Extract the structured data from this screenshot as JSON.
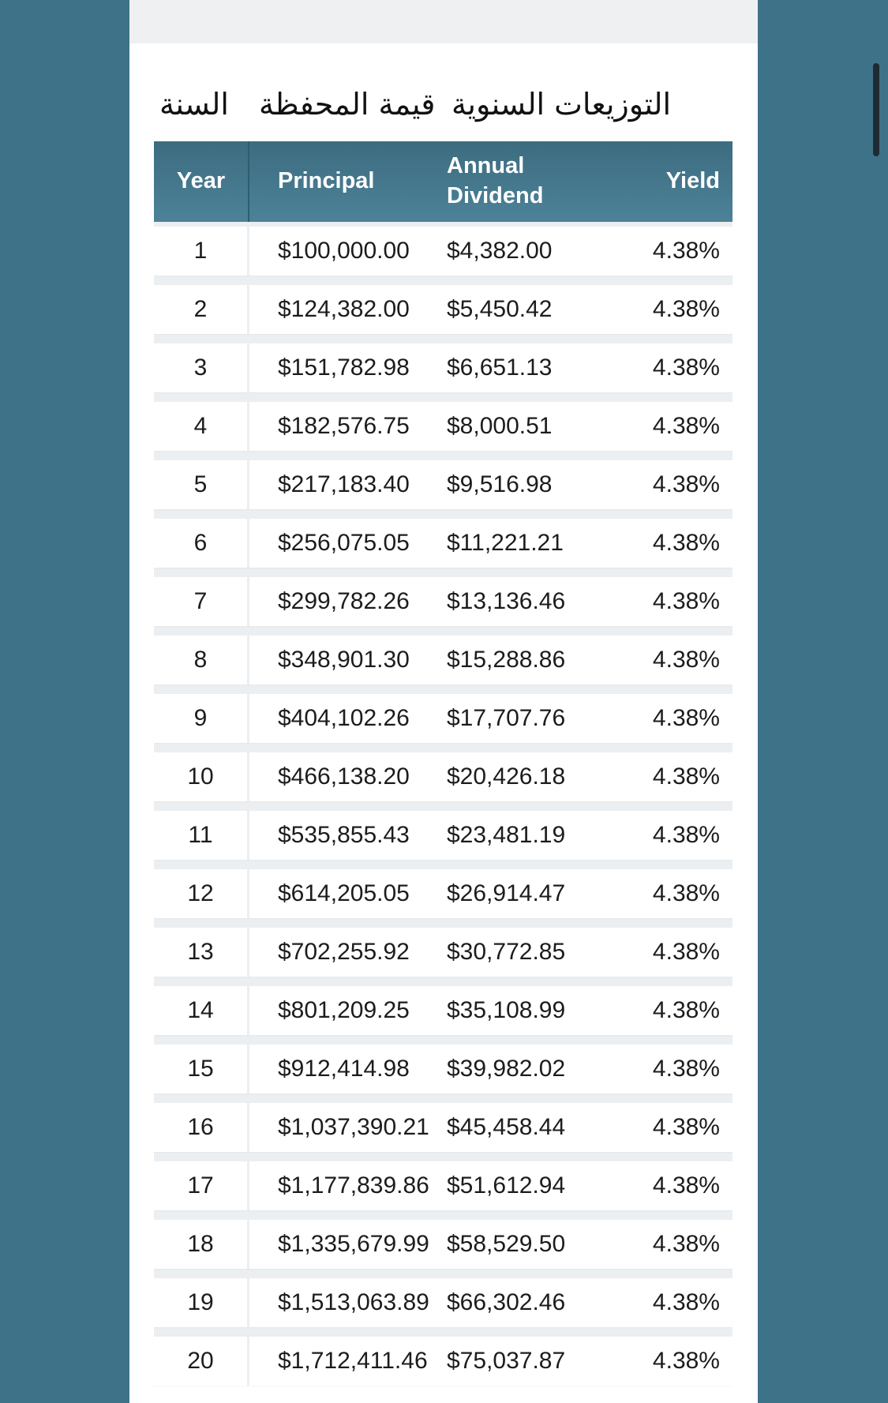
{
  "labels_ar": {
    "year": "السنة",
    "portfolio_value": "قيمة المحفظة",
    "annual_dividends": "التوزيعات السنوية"
  },
  "table": {
    "headers": {
      "year": "Year",
      "principal": "Principal",
      "annual_dividend_line1": "Annual",
      "annual_dividend_line2": "Dividend",
      "yield": "Yield"
    },
    "rows": [
      {
        "year": "1",
        "principal": "$100,000.00",
        "dividend": "$4,382.00",
        "yield": "4.38%"
      },
      {
        "year": "2",
        "principal": "$124,382.00",
        "dividend": "$5,450.42",
        "yield": "4.38%"
      },
      {
        "year": "3",
        "principal": "$151,782.98",
        "dividend": "$6,651.13",
        "yield": "4.38%"
      },
      {
        "year": "4",
        "principal": "$182,576.75",
        "dividend": "$8,000.51",
        "yield": "4.38%"
      },
      {
        "year": "5",
        "principal": "$217,183.40",
        "dividend": "$9,516.98",
        "yield": "4.38%"
      },
      {
        "year": "6",
        "principal": "$256,075.05",
        "dividend": "$11,221.21",
        "yield": "4.38%"
      },
      {
        "year": "7",
        "principal": "$299,782.26",
        "dividend": "$13,136.46",
        "yield": "4.38%"
      },
      {
        "year": "8",
        "principal": "$348,901.30",
        "dividend": "$15,288.86",
        "yield": "4.38%"
      },
      {
        "year": "9",
        "principal": "$404,102.26",
        "dividend": "$17,707.76",
        "yield": "4.38%"
      },
      {
        "year": "10",
        "principal": "$466,138.20",
        "dividend": "$20,426.18",
        "yield": "4.38%"
      },
      {
        "year": "11",
        "principal": "$535,855.43",
        "dividend": "$23,481.19",
        "yield": "4.38%"
      },
      {
        "year": "12",
        "principal": "$614,205.05",
        "dividend": "$26,914.47",
        "yield": "4.38%"
      },
      {
        "year": "13",
        "principal": "$702,255.92",
        "dividend": "$30,772.85",
        "yield": "4.38%"
      },
      {
        "year": "14",
        "principal": "$801,209.25",
        "dividend": "$35,108.99",
        "yield": "4.38%"
      },
      {
        "year": "15",
        "principal": "$912,414.98",
        "dividend": "$39,982.02",
        "yield": "4.38%"
      },
      {
        "year": "16",
        "principal": "$1,037,390.21",
        "dividend": "$45,458.44",
        "yield": "4.38%"
      },
      {
        "year": "17",
        "principal": "$1,177,839.86",
        "dividend": "$51,612.94",
        "yield": "4.38%"
      },
      {
        "year": "18",
        "principal": "$1,335,679.99",
        "dividend": "$58,529.50",
        "yield": "4.38%"
      },
      {
        "year": "19",
        "principal": "$1,513,063.89",
        "dividend": "$66,302.46",
        "yield": "4.38%"
      },
      {
        "year": "20",
        "principal": "$1,712,411.46",
        "dividend": "$75,037.87",
        "yield": "4.38%"
      }
    ]
  },
  "colors": {
    "background": "#3e7289",
    "header_start": "#3d6c80",
    "header_end": "#4c8298",
    "row_gap": "#eceff1"
  }
}
